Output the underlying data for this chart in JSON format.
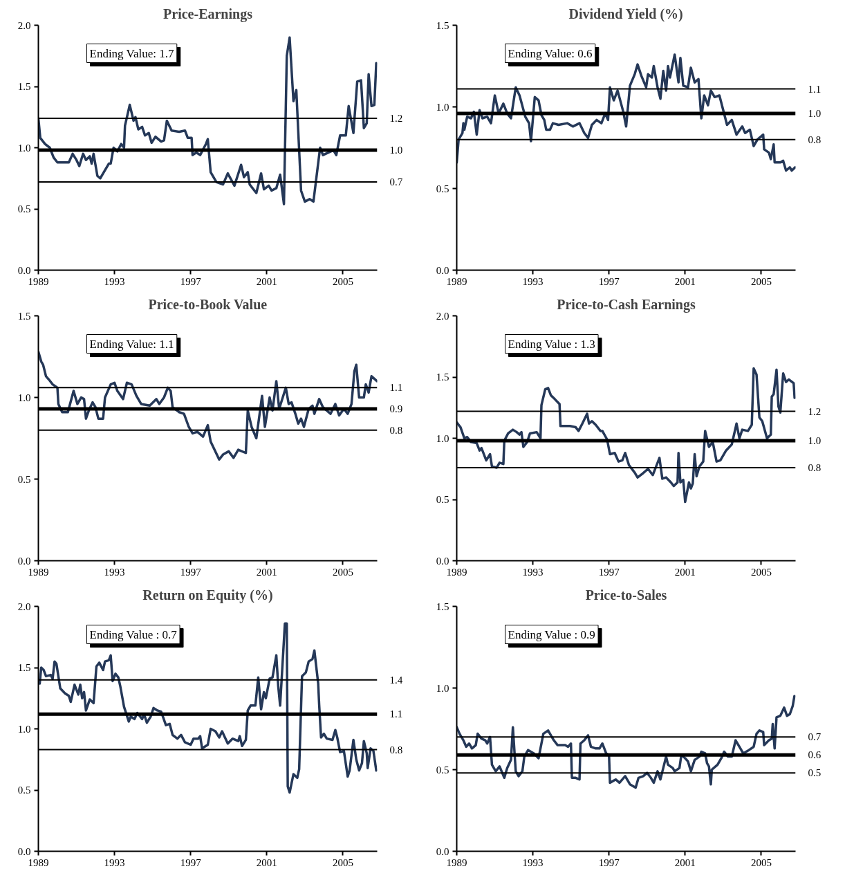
{
  "chart_data": [
    {
      "type": "line",
      "title": "Price-Earnings",
      "xlim": [
        1989,
        2006.8
      ],
      "xticks": [
        1989,
        1993,
        1997,
        2001,
        2005
      ],
      "ylim": [
        0,
        2.0
      ],
      "yticks": [
        {
          "value": 0,
          "label": "0.0"
        },
        {
          "value": 0.5,
          "label": "0.5"
        },
        {
          "value": 1,
          "label": "1.0"
        },
        {
          "value": 1.5,
          "label": "1.5"
        },
        {
          "value": 2,
          "label": "2.0"
        }
      ],
      "annotations": [
        "Ending Value: 1.7"
      ],
      "ref_lines": [
        {
          "axis": "y",
          "value": 1.24,
          "label": "1.2"
        },
        {
          "axis": "y",
          "value": 0.98,
          "label": "1.0"
        },
        {
          "axis": "y",
          "value": 0.72,
          "label": "0.7"
        }
      ],
      "x": [
        1989.0,
        1989.1,
        1989.35,
        1989.6,
        1989.8,
        1990.0,
        1990.6,
        1990.8,
        1991.0,
        1991.15,
        1991.35,
        1991.5,
        1991.7,
        1991.8,
        1991.9,
        1992.1,
        1992.25,
        1992.7,
        1992.8,
        1992.95,
        1993.15,
        1993.35,
        1993.5,
        1993.55,
        1993.8,
        1994.0,
        1994.1,
        1994.25,
        1994.45,
        1994.6,
        1994.8,
        1994.95,
        1995.15,
        1995.45,
        1995.6,
        1995.75,
        1996.0,
        1996.4,
        1996.7,
        1996.85,
        1997.05,
        1997.1,
        1997.3,
        1997.5,
        1997.8,
        1997.9,
        1998.05,
        1998.35,
        1998.7,
        1998.95,
        1999.3,
        1999.65,
        1999.8,
        2000.0,
        2000.1,
        2000.45,
        2000.7,
        2000.85,
        2001.1,
        2001.25,
        2001.5,
        2001.7,
        2001.9,
        2002.05,
        2002.2,
        2002.4,
        2002.55,
        2002.8,
        2003.0,
        2003.25,
        2003.45,
        2003.8,
        2003.95,
        2004.5,
        2004.65,
        2004.85,
        2005.15,
        2005.3,
        2005.55,
        2005.75,
        2005.95,
        2006.1,
        2006.25,
        2006.35,
        2006.5,
        2006.65,
        2006.75
      ],
      "series": [
        {
          "color": "#253858",
          "values": [
            1.24,
            1.08,
            1.03,
            1.0,
            0.92,
            0.88,
            0.88,
            0.95,
            0.9,
            0.85,
            0.95,
            0.9,
            0.93,
            0.87,
            0.95,
            0.77,
            0.75,
            0.87,
            0.87,
            1.0,
            0.97,
            1.03,
            1.0,
            1.18,
            1.35,
            1.22,
            1.25,
            1.15,
            1.17,
            1.1,
            1.12,
            1.04,
            1.09,
            1.05,
            1.06,
            1.22,
            1.14,
            1.13,
            1.14,
            1.08,
            1.08,
            0.94,
            0.96,
            0.94,
            1.03,
            1.07,
            0.8,
            0.72,
            0.7,
            0.79,
            0.69,
            0.86,
            0.76,
            0.8,
            0.7,
            0.63,
            0.79,
            0.66,
            0.69,
            0.65,
            0.67,
            0.78,
            0.54,
            1.75,
            1.9,
            1.38,
            1.47,
            0.65,
            0.56,
            0.58,
            0.56,
            1.0,
            0.94,
            0.98,
            0.94,
            1.1,
            1.1,
            1.34,
            1.12,
            1.54,
            1.55,
            1.16,
            1.2,
            1.6,
            1.34,
            1.35,
            1.69
          ]
        }
      ]
    },
    {
      "type": "line",
      "title": "Dividend Yield (%)",
      "xlim": [
        1989,
        2006.8
      ],
      "xticks": [
        1989,
        1993,
        1997,
        2001,
        2005
      ],
      "ylim": [
        0,
        1.5
      ],
      "yticks": [
        {
          "value": 0,
          "label": "0.0"
        },
        {
          "value": 0.5,
          "label": "0.5"
        },
        {
          "value": 1,
          "label": "1.0"
        },
        {
          "value": 1.5,
          "label": "1.5"
        }
      ],
      "annotations": [
        "Ending Value: 0.6"
      ],
      "ref_lines": [
        {
          "axis": "y",
          "value": 1.11,
          "label": "1.1"
        },
        {
          "axis": "y",
          "value": 0.96,
          "label": "1.0"
        },
        {
          "axis": "y",
          "value": 0.8,
          "label": "0.8"
        }
      ],
      "x": [
        1989.0,
        1989.1,
        1989.3,
        1989.35,
        1989.4,
        1989.55,
        1989.75,
        1989.9,
        1990.05,
        1990.2,
        1990.35,
        1990.6,
        1990.8,
        1991.0,
        1991.2,
        1991.45,
        1991.65,
        1991.85,
        1992.1,
        1992.3,
        1992.6,
        1992.8,
        1992.9,
        1993.1,
        1993.3,
        1993.45,
        1993.6,
        1993.7,
        1993.9,
        1994.05,
        1994.35,
        1994.8,
        1995.1,
        1995.45,
        1995.7,
        1995.9,
        1996.1,
        1996.35,
        1996.6,
        1996.8,
        1996.95,
        1997.05,
        1997.25,
        1997.45,
        1997.75,
        1997.9,
        1998.1,
        1998.35,
        1998.5,
        1998.7,
        1998.95,
        1999.05,
        1999.25,
        1999.35,
        1999.55,
        1999.7,
        1999.85,
        2000.0,
        2000.1,
        2000.2,
        2000.45,
        2000.65,
        2000.75,
        2000.9,
        2001.15,
        2001.3,
        2001.5,
        2001.7,
        2001.85,
        2002.0,
        2002.2,
        2002.35,
        2002.55,
        2002.8,
        2003.0,
        2003.2,
        2003.45,
        2003.7,
        2004.0,
        2004.15,
        2004.4,
        2004.6,
        2004.8,
        2005.1,
        2005.15,
        2005.4,
        2005.5,
        2005.65,
        2005.7,
        2006.0,
        2006.15,
        2006.3,
        2006.5,
        2006.6,
        2006.78
      ],
      "series": [
        {
          "color": "#253858",
          "values": [
            0.66,
            0.8,
            0.84,
            0.9,
            0.86,
            0.94,
            0.93,
            0.97,
            0.83,
            0.98,
            0.93,
            0.94,
            0.9,
            1.07,
            0.96,
            1.02,
            0.96,
            0.93,
            1.12,
            1.07,
            0.94,
            0.9,
            0.79,
            1.06,
            1.04,
            0.95,
            0.92,
            0.86,
            0.86,
            0.9,
            0.89,
            0.9,
            0.88,
            0.9,
            0.84,
            0.81,
            0.89,
            0.92,
            0.9,
            0.96,
            0.92,
            1.12,
            1.04,
            1.1,
            0.97,
            0.88,
            1.13,
            1.2,
            1.26,
            1.19,
            1.12,
            1.2,
            1.18,
            1.25,
            1.12,
            1.05,
            1.22,
            1.1,
            1.25,
            1.18,
            1.32,
            1.15,
            1.3,
            1.13,
            1.12,
            1.24,
            1.15,
            1.17,
            0.93,
            1.07,
            1.01,
            1.1,
            1.06,
            1.07,
            0.98,
            0.89,
            0.92,
            0.83,
            0.88,
            0.84,
            0.86,
            0.76,
            0.8,
            0.83,
            0.74,
            0.72,
            0.68,
            0.77,
            0.66,
            0.66,
            0.67,
            0.61,
            0.63,
            0.61,
            0.63
          ]
        }
      ]
    },
    {
      "type": "line",
      "title": "Price-to-Book Value",
      "xlim": [
        1989,
        2006.8
      ],
      "xticks": [
        1989,
        1993,
        1997,
        2001,
        2005
      ],
      "ylim": [
        0,
        1.5
      ],
      "yticks": [
        {
          "value": 0,
          "label": "0.0"
        },
        {
          "value": 0.5,
          "label": "0.5"
        },
        {
          "value": 1,
          "label": "1.0"
        },
        {
          "value": 1.5,
          "label": "1.5"
        }
      ],
      "annotations": [
        "Ending Value: 1.1"
      ],
      "ref_lines": [
        {
          "axis": "y",
          "value": 1.06,
          "label": "1.1"
        },
        {
          "axis": "y",
          "value": 0.93,
          "label": "0.9"
        },
        {
          "axis": "y",
          "value": 0.8,
          "label": "0.8"
        }
      ],
      "x": [
        1989.0,
        1989.15,
        1989.25,
        1989.4,
        1989.55,
        1989.75,
        1990.0,
        1990.05,
        1990.25,
        1990.55,
        1990.85,
        1991.05,
        1991.25,
        1991.4,
        1991.5,
        1991.65,
        1991.85,
        1992.0,
        1992.15,
        1992.4,
        1992.5,
        1992.8,
        1993.0,
        1993.15,
        1993.45,
        1993.65,
        1993.9,
        1994.15,
        1994.4,
        1994.85,
        1995.2,
        1995.35,
        1995.6,
        1995.8,
        1995.95,
        1996.05,
        1996.4,
        1996.65,
        1996.9,
        1997.1,
        1997.35,
        1997.65,
        1997.9,
        1998.05,
        1998.5,
        1998.7,
        1999.0,
        1999.25,
        1999.5,
        1999.9,
        2000.0,
        2000.2,
        2000.45,
        2000.75,
        2000.9,
        2001.15,
        2001.3,
        2001.5,
        2001.65,
        2002.0,
        2002.15,
        2002.3,
        2002.5,
        2002.65,
        2002.8,
        2002.95,
        2003.2,
        2003.4,
        2003.5,
        2003.75,
        2003.95,
        2004.35,
        2004.6,
        2004.8,
        2005.05,
        2005.25,
        2005.45,
        2005.6,
        2005.7,
        2005.85,
        2006.1,
        2006.2,
        2006.35,
        2006.5,
        2006.79
      ],
      "series": [
        {
          "color": "#253858",
          "values": [
            1.28,
            1.22,
            1.2,
            1.13,
            1.11,
            1.08,
            1.06,
            0.96,
            0.91,
            0.91,
            1.04,
            0.96,
            1.0,
            0.99,
            0.87,
            0.92,
            0.97,
            0.94,
            0.87,
            0.87,
            1.0,
            1.08,
            1.09,
            1.04,
            0.99,
            1.09,
            1.08,
            1.01,
            0.96,
            0.95,
            0.99,
            0.96,
            1.0,
            1.06,
            1.04,
            0.94,
            0.91,
            0.9,
            0.82,
            0.78,
            0.79,
            0.76,
            0.83,
            0.73,
            0.62,
            0.65,
            0.67,
            0.63,
            0.68,
            0.66,
            0.92,
            0.82,
            0.75,
            1.01,
            0.82,
            1.0,
            0.92,
            1.1,
            0.93,
            1.06,
            0.96,
            0.97,
            0.9,
            0.84,
            0.87,
            0.82,
            0.93,
            0.95,
            0.9,
            0.99,
            0.94,
            0.9,
            0.96,
            0.89,
            0.93,
            0.9,
            0.96,
            1.16,
            1.2,
            1.0,
            1.0,
            1.08,
            1.03,
            1.13,
            1.1
          ]
        }
      ]
    },
    {
      "type": "line",
      "title": "Price-to-Cash Earnings",
      "xlim": [
        1989,
        2006.8
      ],
      "xticks": [
        1989,
        1993,
        1997,
        2001,
        2005
      ],
      "ylim": [
        0,
        2.0
      ],
      "yticks": [
        {
          "value": 0,
          "label": "0.0"
        },
        {
          "value": 0.5,
          "label": "0.5"
        },
        {
          "value": 1,
          "label": "1.0"
        },
        {
          "value": 1.5,
          "label": "1.5"
        },
        {
          "value": 2,
          "label": "2.0"
        }
      ],
      "annotations": [
        "Ending Value : 1.3"
      ],
      "ref_lines": [
        {
          "axis": "y",
          "value": 1.22,
          "label": "1.2"
        },
        {
          "axis": "y",
          "value": 0.98,
          "label": "1.0"
        },
        {
          "axis": "y",
          "value": 0.76,
          "label": "0.8"
        }
      ],
      "x": [
        1989.0,
        1989.2,
        1989.4,
        1989.55,
        1989.75,
        1990.05,
        1990.2,
        1990.3,
        1990.55,
        1990.75,
        1990.85,
        1991.1,
        1991.25,
        1991.45,
        1991.5,
        1991.7,
        1991.95,
        1992.15,
        1992.3,
        1992.4,
        1992.5,
        1992.7,
        1992.85,
        1993.2,
        1993.4,
        1993.45,
        1993.65,
        1993.8,
        1993.95,
        1994.15,
        1994.4,
        1994.45,
        1994.7,
        1994.95,
        1995.25,
        1995.4,
        1995.6,
        1995.85,
        1995.95,
        1996.1,
        1996.3,
        1996.55,
        1996.65,
        1996.9,
        1997.05,
        1997.3,
        1997.5,
        1997.7,
        1997.85,
        1998.05,
        1998.35,
        1998.5,
        1998.75,
        1999.05,
        1999.3,
        1999.65,
        1999.8,
        2000.0,
        2000.25,
        2000.4,
        2000.6,
        2000.65,
        2000.75,
        2000.9,
        2001.0,
        2001.2,
        2001.3,
        2001.4,
        2001.5,
        2001.6,
        2001.75,
        2001.95,
        2002.05,
        2002.25,
        2002.45,
        2002.65,
        2002.85,
        2003.15,
        2003.45,
        2003.7,
        2003.85,
        2004.0,
        2004.3,
        2004.5,
        2004.6,
        2004.75,
        2004.9,
        2005.05,
        2005.3,
        2005.5,
        2005.55,
        2005.65,
        2005.8,
        2005.9,
        2006.0,
        2006.15,
        2006.3,
        2006.45,
        2006.7,
        2006.75
      ],
      "series": [
        {
          "color": "#253858",
          "values": [
            1.13,
            1.09,
            1.0,
            1.01,
            0.97,
            0.96,
            0.9,
            0.92,
            0.82,
            0.87,
            0.77,
            0.76,
            0.8,
            0.79,
            0.98,
            1.04,
            1.07,
            1.05,
            1.03,
            1.05,
            0.93,
            0.97,
            1.04,
            1.05,
            1.0,
            1.27,
            1.4,
            1.41,
            1.35,
            1.32,
            1.28,
            1.1,
            1.1,
            1.1,
            1.09,
            1.06,
            1.12,
            1.2,
            1.12,
            1.14,
            1.11,
            1.06,
            1.06,
            0.99,
            0.87,
            0.88,
            0.81,
            0.82,
            0.88,
            0.78,
            0.72,
            0.68,
            0.71,
            0.75,
            0.7,
            0.84,
            0.67,
            0.68,
            0.64,
            0.61,
            0.64,
            0.88,
            0.64,
            0.66,
            0.48,
            0.64,
            0.59,
            0.63,
            0.87,
            0.69,
            0.77,
            0.81,
            1.06,
            0.93,
            0.97,
            0.81,
            0.82,
            0.9,
            0.95,
            1.12,
            1.0,
            1.07,
            1.06,
            1.11,
            1.57,
            1.52,
            1.17,
            1.14,
            1.0,
            1.03,
            1.34,
            1.36,
            1.56,
            1.26,
            1.21,
            1.53,
            1.46,
            1.48,
            1.45,
            1.33
          ]
        }
      ]
    },
    {
      "type": "line",
      "title": "Return on Equity (%)",
      "xlim": [
        1989,
        2006.8
      ],
      "xticks": [
        1989,
        1993,
        1997,
        2001,
        2005
      ],
      "ylim": [
        0,
        2.0
      ],
      "yticks": [
        {
          "value": 0,
          "label": "0.0"
        },
        {
          "value": 0.5,
          "label": "0.5"
        },
        {
          "value": 1,
          "label": "1.0"
        },
        {
          "value": 1.5,
          "label": "1.5"
        },
        {
          "value": 2,
          "label": "2.0"
        }
      ],
      "annotations": [
        "Ending Value : 0.7"
      ],
      "ref_lines": [
        {
          "axis": "y",
          "value": 1.4,
          "label": "1.4"
        },
        {
          "axis": "y",
          "value": 1.12,
          "label": "1.1"
        },
        {
          "axis": "y",
          "value": 0.83,
          "label": "0.8"
        }
      ],
      "x": [
        1989.0,
        1989.07,
        1989.15,
        1989.28,
        1989.4,
        1989.65,
        1989.75,
        1989.85,
        1989.95,
        1990.15,
        1990.4,
        1990.6,
        1990.7,
        1990.9,
        1991.1,
        1991.2,
        1991.3,
        1991.4,
        1991.5,
        1991.7,
        1991.9,
        1992.05,
        1992.2,
        1992.4,
        1992.5,
        1992.7,
        1992.8,
        1992.9,
        1993.05,
        1993.2,
        1993.3,
        1993.5,
        1993.75,
        1993.85,
        1994.05,
        1994.2,
        1994.45,
        1994.55,
        1994.7,
        1994.9,
        1995.05,
        1995.25,
        1995.45,
        1995.7,
        1995.9,
        1996.05,
        1996.3,
        1996.5,
        1996.7,
        1997.0,
        1997.15,
        1997.4,
        1997.5,
        1997.6,
        1997.9,
        1998.05,
        1998.3,
        1998.5,
        1998.65,
        1998.95,
        1999.2,
        1999.5,
        1999.58,
        1999.7,
        1999.9,
        2000.0,
        2000.15,
        2000.4,
        2000.55,
        2000.7,
        2000.85,
        2000.95,
        2001.15,
        2001.3,
        2001.5,
        2001.6,
        2001.7,
        2001.95,
        2002.05,
        2002.1,
        2002.2,
        2002.4,
        2002.6,
        2002.7,
        2002.85,
        2003.05,
        2003.2,
        2003.4,
        2003.5,
        2003.7,
        2003.75,
        2003.85,
        2004.0,
        2004.15,
        2004.45,
        2004.6,
        2004.7,
        2004.85,
        2005.05,
        2005.25,
        2005.35,
        2005.55,
        2005.7,
        2005.85,
        2006.0,
        2006.1,
        2006.25,
        2006.3,
        2006.45,
        2006.6,
        2006.75
      ],
      "series": [
        {
          "color": "#253858",
          "values": [
            1.4,
            1.37,
            1.5,
            1.48,
            1.43,
            1.44,
            1.41,
            1.55,
            1.53,
            1.33,
            1.29,
            1.27,
            1.22,
            1.36,
            1.28,
            1.36,
            1.25,
            1.3,
            1.15,
            1.24,
            1.21,
            1.51,
            1.54,
            1.48,
            1.55,
            1.56,
            1.6,
            1.39,
            1.45,
            1.42,
            1.35,
            1.18,
            1.06,
            1.1,
            1.08,
            1.13,
            1.08,
            1.12,
            1.05,
            1.1,
            1.17,
            1.15,
            1.14,
            1.03,
            1.04,
            0.95,
            0.92,
            0.95,
            0.89,
            0.87,
            0.92,
            0.92,
            0.94,
            0.84,
            0.87,
            1.0,
            0.98,
            0.93,
            0.98,
            0.88,
            0.92,
            0.9,
            0.94,
            0.86,
            0.91,
            1.15,
            1.19,
            1.19,
            1.42,
            1.16,
            1.3,
            1.25,
            1.41,
            1.42,
            1.6,
            1.35,
            1.19,
            1.86,
            1.86,
            0.53,
            0.48,
            0.63,
            0.6,
            0.67,
            1.43,
            1.46,
            1.55,
            1.57,
            1.64,
            1.37,
            1.2,
            0.93,
            0.96,
            0.92,
            0.91,
            0.99,
            0.93,
            0.81,
            0.82,
            0.61,
            0.66,
            0.91,
            0.75,
            0.66,
            0.72,
            0.9,
            0.8,
            0.68,
            0.84,
            0.82,
            0.66
          ]
        }
      ]
    },
    {
      "type": "line",
      "title": "Price-to-Sales",
      "xlim": [
        1989,
        2006.8
      ],
      "xticks": [
        1989,
        1993,
        1997,
        2001,
        2005
      ],
      "ylim": [
        0,
        1.5
      ],
      "yticks": [
        {
          "value": 0,
          "label": "0.0"
        },
        {
          "value": 0.5,
          "label": "0.5"
        },
        {
          "value": 1,
          "label": "1.0"
        },
        {
          "value": 1.5,
          "label": "1.5"
        }
      ],
      "annotations": [
        "Ending Value : 0.9"
      ],
      "ref_lines": [
        {
          "axis": "y",
          "value": 0.7,
          "label": "0.7"
        },
        {
          "axis": "y",
          "value": 0.59,
          "label": "0.6"
        },
        {
          "axis": "y",
          "value": 0.48,
          "label": "0.5"
        }
      ],
      "x": [
        1989.0,
        1989.15,
        1989.35,
        1989.5,
        1989.65,
        1989.8,
        1990.0,
        1990.1,
        1990.3,
        1990.5,
        1990.6,
        1990.75,
        1990.85,
        1991.05,
        1991.25,
        1991.5,
        1991.65,
        1991.85,
        1991.95,
        1992.1,
        1992.25,
        1992.45,
        1992.55,
        1992.75,
        1993.05,
        1993.3,
        1993.55,
        1993.8,
        1994.1,
        1994.3,
        1994.7,
        1994.85,
        1995.0,
        1995.05,
        1995.25,
        1995.45,
        1995.5,
        1995.7,
        1995.9,
        1996.05,
        1996.3,
        1996.5,
        1996.65,
        1996.85,
        1997.0,
        1997.05,
        1997.35,
        1997.55,
        1997.85,
        1998.1,
        1998.4,
        1998.55,
        1998.8,
        1999.0,
        1999.2,
        1999.35,
        1999.55,
        1999.7,
        1999.85,
        2000.0,
        2000.1,
        2000.35,
        2000.45,
        2000.7,
        2000.8,
        2001.0,
        2001.15,
        2001.3,
        2001.5,
        2001.75,
        2001.85,
        2002.05,
        2002.15,
        2002.25,
        2002.35,
        2002.4,
        2002.7,
        2002.9,
        2003.05,
        2003.25,
        2003.45,
        2003.65,
        2003.85,
        2004.05,
        2004.35,
        2004.6,
        2004.75,
        2004.9,
        2005.1,
        2005.15,
        2005.4,
        2005.55,
        2005.6,
        2005.7,
        2005.8,
        2006.0,
        2006.2,
        2006.35,
        2006.5,
        2006.65,
        2006.74
      ],
      "series": [
        {
          "color": "#253858",
          "values": [
            0.76,
            0.72,
            0.68,
            0.64,
            0.66,
            0.63,
            0.65,
            0.72,
            0.69,
            0.68,
            0.66,
            0.7,
            0.53,
            0.49,
            0.52,
            0.45,
            0.51,
            0.56,
            0.76,
            0.49,
            0.46,
            0.49,
            0.58,
            0.62,
            0.6,
            0.57,
            0.72,
            0.74,
            0.68,
            0.65,
            0.65,
            0.64,
            0.66,
            0.45,
            0.45,
            0.44,
            0.66,
            0.68,
            0.71,
            0.64,
            0.63,
            0.63,
            0.66,
            0.6,
            0.59,
            0.42,
            0.44,
            0.42,
            0.46,
            0.41,
            0.39,
            0.45,
            0.46,
            0.48,
            0.45,
            0.42,
            0.49,
            0.44,
            0.51,
            0.58,
            0.53,
            0.51,
            0.49,
            0.51,
            0.59,
            0.57,
            0.55,
            0.49,
            0.56,
            0.58,
            0.61,
            0.6,
            0.54,
            0.52,
            0.41,
            0.5,
            0.53,
            0.57,
            0.61,
            0.58,
            0.58,
            0.68,
            0.64,
            0.6,
            0.62,
            0.64,
            0.72,
            0.74,
            0.73,
            0.65,
            0.68,
            0.69,
            0.78,
            0.63,
            0.82,
            0.83,
            0.88,
            0.83,
            0.84,
            0.89,
            0.95
          ]
        }
      ]
    }
  ]
}
